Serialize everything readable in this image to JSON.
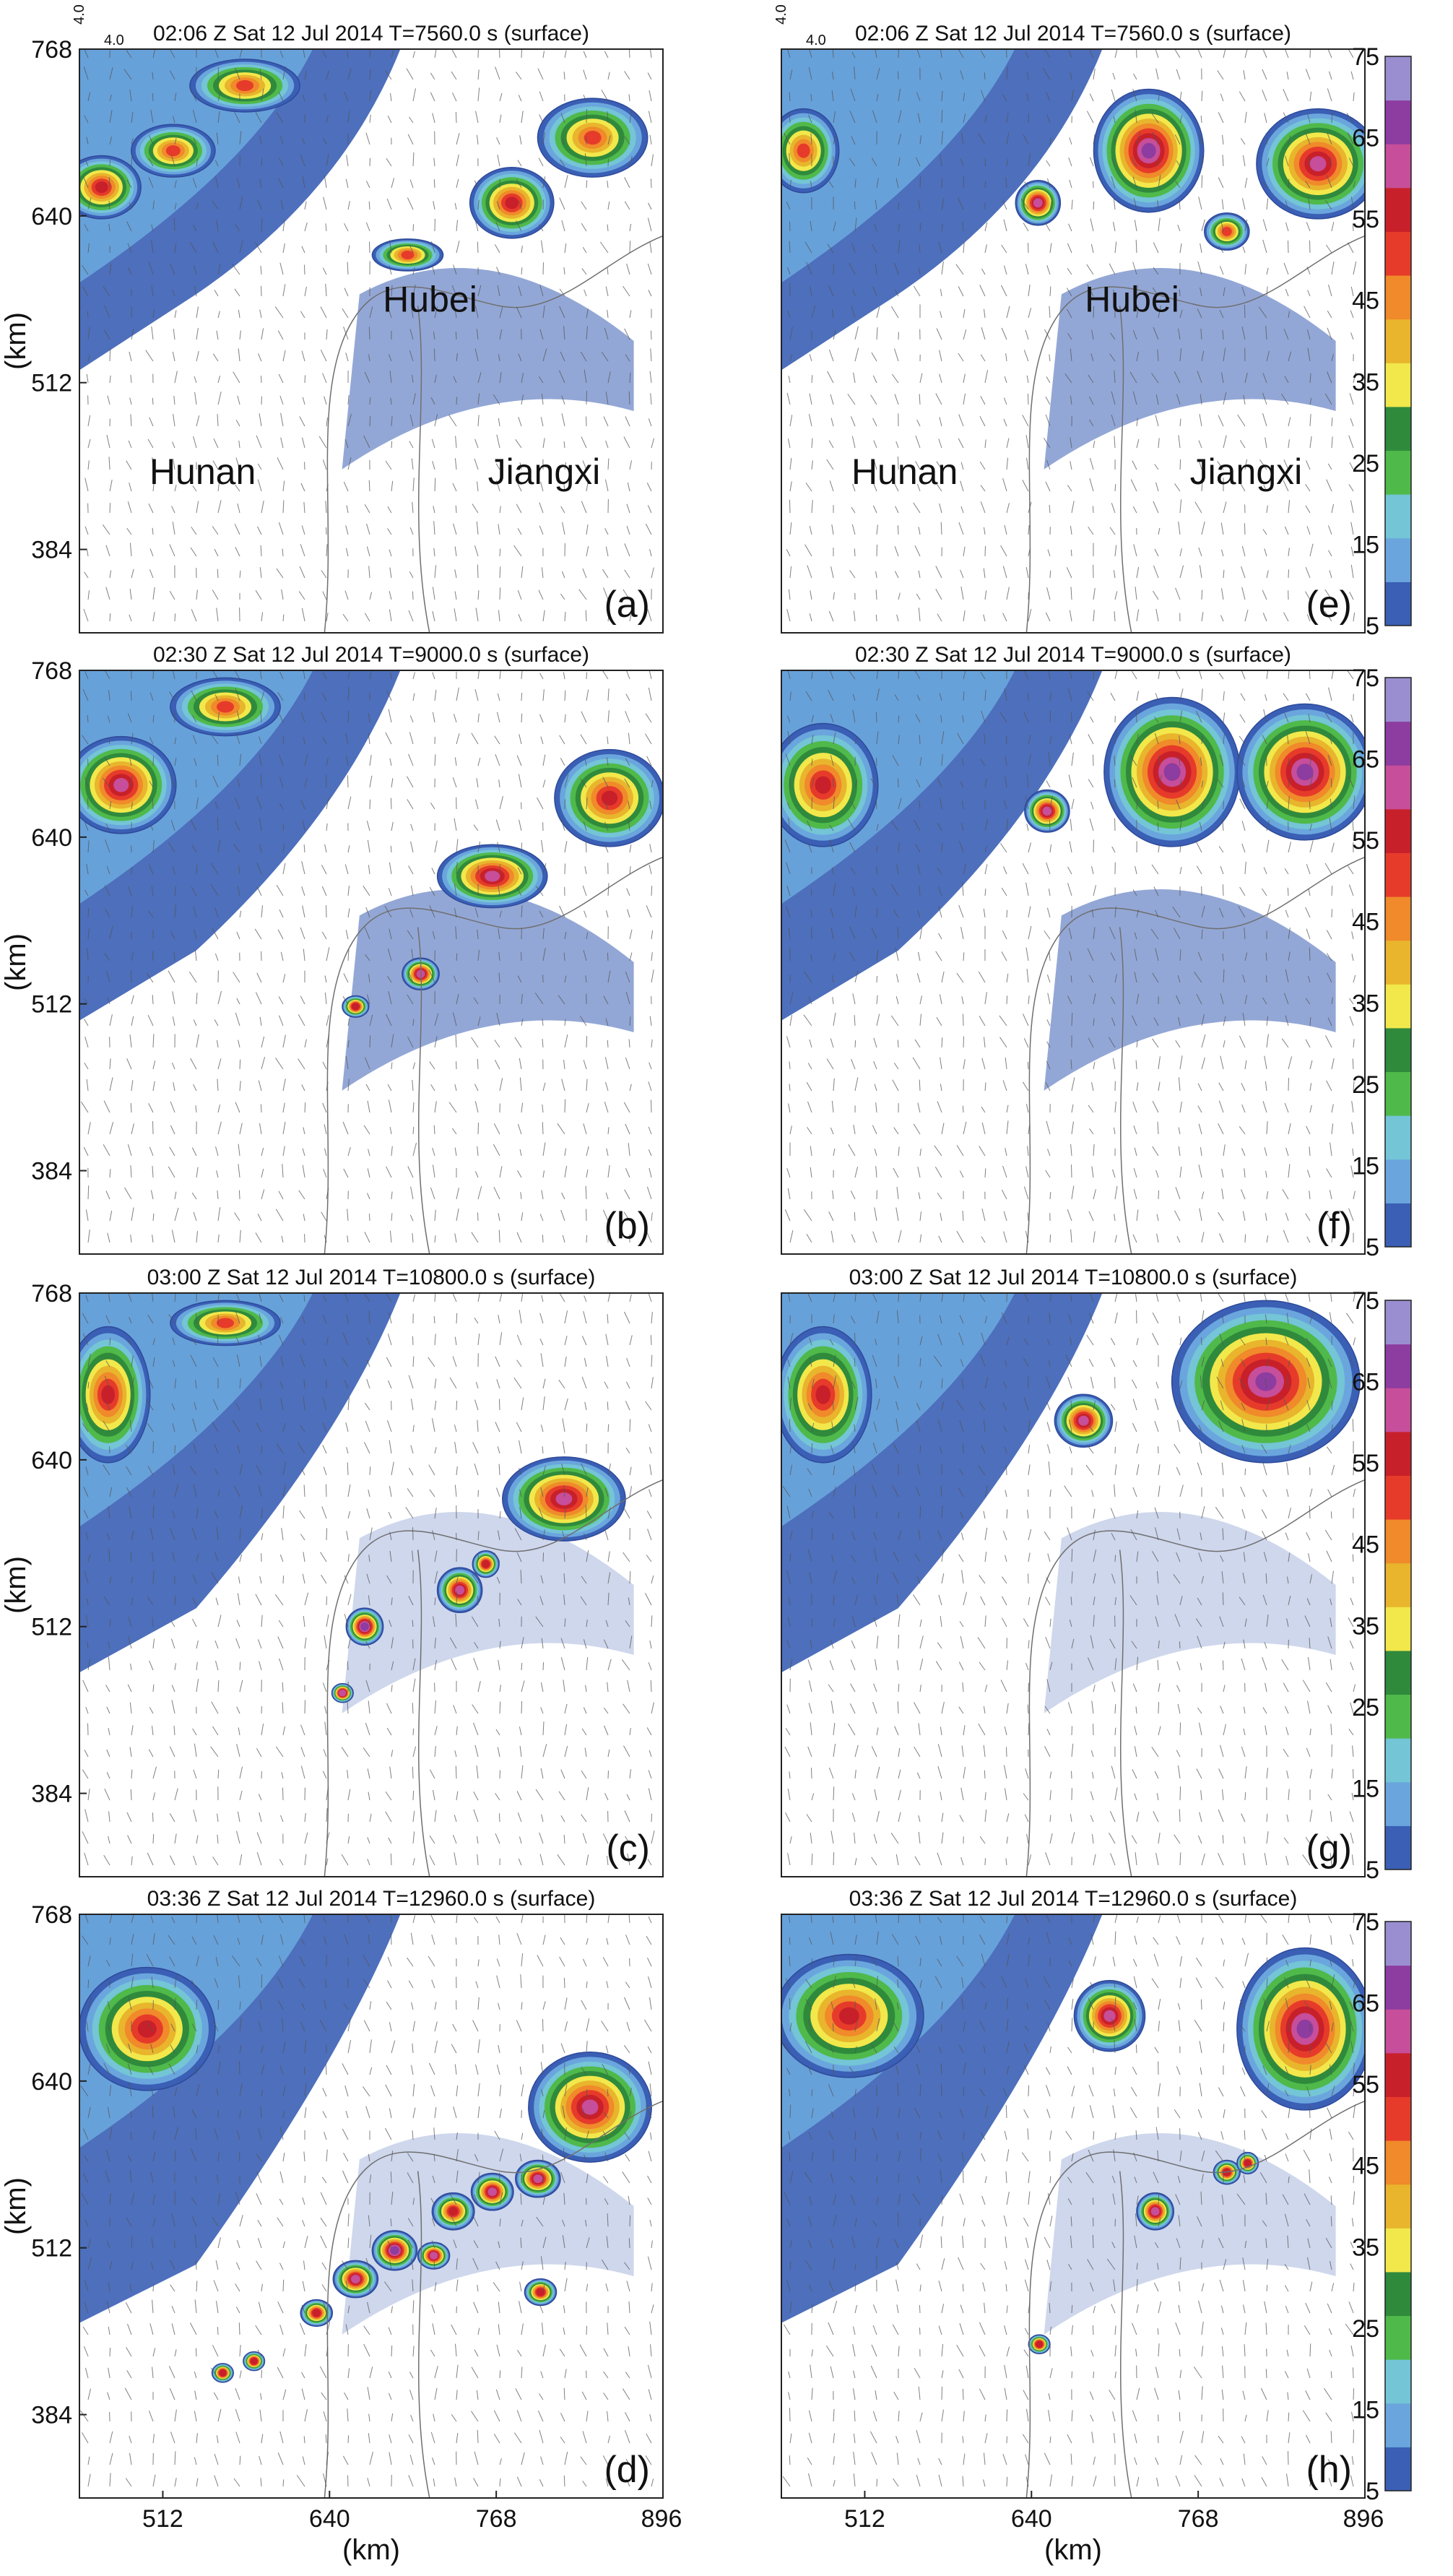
{
  "chart_data": [
    {
      "type": "heatmap",
      "panel": "(a)",
      "title": "02:06 Z Sat 12 Jul 2014 T=7560.0 s (surface)",
      "xlabel": "",
      "ylabel": "(km)",
      "xlim": [
        448,
        896
      ],
      "ylim": [
        320,
        768
      ],
      "yticks": [
        "768",
        "640",
        "512",
        "384"
      ],
      "place_labels": [
        "Hubei",
        "Hunan",
        "Jiangxi"
      ],
      "vector_key": "4.0",
      "field": "radar reflectivity (dBZ)",
      "cells": [
        {
          "x": 465,
          "y": 662,
          "rx": 28,
          "ry": 22,
          "max_dbz": 50
        },
        {
          "x": 520,
          "y": 690,
          "rx": 30,
          "ry": 18,
          "max_dbz": 45
        },
        {
          "x": 575,
          "y": 740,
          "rx": 40,
          "ry": 18,
          "max_dbz": 45
        },
        {
          "x": 780,
          "y": 650,
          "rx": 30,
          "ry": 25,
          "max_dbz": 50
        },
        {
          "x": 842,
          "y": 700,
          "rx": 40,
          "ry": 28,
          "max_dbz": 45
        },
        {
          "x": 700,
          "y": 610,
          "rx": 25,
          "ry": 10,
          "max_dbz": 45
        }
      ]
    },
    {
      "type": "heatmap",
      "panel": "(b)",
      "title": "02:30 Z Sat 12 Jul 2014 T=9000.0 s (surface)",
      "xlabel": "",
      "ylabel": "(km)",
      "xlim": [
        448,
        896
      ],
      "ylim": [
        320,
        768
      ],
      "yticks": [
        "768",
        "640",
        "512",
        "384"
      ],
      "field": "radar reflectivity (dBZ)",
      "cells": [
        {
          "x": 480,
          "y": 680,
          "rx": 40,
          "ry": 35,
          "max_dbz": 55
        },
        {
          "x": 560,
          "y": 740,
          "rx": 40,
          "ry": 20,
          "max_dbz": 45
        },
        {
          "x": 765,
          "y": 610,
          "rx": 40,
          "ry": 22,
          "max_dbz": 55
        },
        {
          "x": 855,
          "y": 670,
          "rx": 40,
          "ry": 35,
          "max_dbz": 50
        },
        {
          "x": 710,
          "y": 535,
          "rx": 12,
          "ry": 10,
          "max_dbz": 55
        },
        {
          "x": 660,
          "y": 510,
          "rx": 8,
          "ry": 6,
          "max_dbz": 50
        }
      ]
    },
    {
      "type": "heatmap",
      "panel": "(c)",
      "title": "03:00 Z Sat 12 Jul 2014 T=10800.0 s (surface)",
      "xlabel": "",
      "ylabel": "(km)",
      "xlim": [
        448,
        896
      ],
      "ylim": [
        320,
        768
      ],
      "yticks": [
        "768",
        "640",
        "512",
        "384"
      ],
      "field": "radar reflectivity (dBZ)",
      "cells": [
        {
          "x": 470,
          "y": 690,
          "rx": 30,
          "ry": 50,
          "max_dbz": 50
        },
        {
          "x": 560,
          "y": 745,
          "rx": 40,
          "ry": 15,
          "max_dbz": 45
        },
        {
          "x": 820,
          "y": 610,
          "rx": 45,
          "ry": 30,
          "max_dbz": 55
        },
        {
          "x": 740,
          "y": 540,
          "rx": 15,
          "ry": 15,
          "max_dbz": 55
        },
        {
          "x": 667,
          "y": 512,
          "rx": 12,
          "ry": 12,
          "max_dbz": 60
        },
        {
          "x": 760,
          "y": 560,
          "rx": 8,
          "ry": 8,
          "max_dbz": 50
        },
        {
          "x": 650,
          "y": 461,
          "rx": 6,
          "ry": 5,
          "max_dbz": 55
        }
      ]
    },
    {
      "type": "heatmap",
      "panel": "(d)",
      "title": "03:36 Z Sat 12 Jul 2014 T=12960.0 s (surface)",
      "xlabel": "(km)",
      "ylabel": "(km)",
      "xlim": [
        448,
        896
      ],
      "ylim": [
        320,
        768
      ],
      "xticks": [
        "512",
        "640",
        "768",
        "896"
      ],
      "yticks": [
        "768",
        "640",
        "512",
        "384"
      ],
      "field": "radar reflectivity (dBZ)",
      "cells": [
        {
          "x": 500,
          "y": 680,
          "rx": 50,
          "ry": 45,
          "max_dbz": 50
        },
        {
          "x": 840,
          "y": 620,
          "rx": 45,
          "ry": 40,
          "max_dbz": 55
        },
        {
          "x": 800,
          "y": 565,
          "rx": 15,
          "ry": 12,
          "max_dbz": 55
        },
        {
          "x": 765,
          "y": 555,
          "rx": 14,
          "ry": 12,
          "max_dbz": 55
        },
        {
          "x": 735,
          "y": 540,
          "rx": 14,
          "ry": 12,
          "max_dbz": 50
        },
        {
          "x": 690,
          "y": 510,
          "rx": 15,
          "ry": 13,
          "max_dbz": 60
        },
        {
          "x": 660,
          "y": 488,
          "rx": 15,
          "ry": 12,
          "max_dbz": 55
        },
        {
          "x": 630,
          "y": 462,
          "rx": 10,
          "ry": 8,
          "max_dbz": 50
        },
        {
          "x": 720,
          "y": 506,
          "rx": 10,
          "ry": 8,
          "max_dbz": 55
        },
        {
          "x": 802,
          "y": 478,
          "rx": 10,
          "ry": 8,
          "max_dbz": 50
        },
        {
          "x": 558,
          "y": 416,
          "rx": 6,
          "ry": 5,
          "max_dbz": 50
        },
        {
          "x": 582,
          "y": 425,
          "rx": 6,
          "ry": 5,
          "max_dbz": 50
        }
      ]
    },
    {
      "type": "heatmap",
      "panel": "(e)",
      "title": "02:06 Z Sat 12 Jul 2014 T=7560.0 s (surface)",
      "xlabel": "",
      "ylabel": "",
      "xlim": [
        448,
        896
      ],
      "ylim": [
        320,
        768
      ],
      "place_labels": [
        "Hubei",
        "Hunan",
        "Jiangxi"
      ],
      "vector_key": "4.0",
      "field": "radar reflectivity (dBZ)",
      "cells": [
        {
          "x": 465,
          "y": 690,
          "rx": 25,
          "ry": 30,
          "max_dbz": 45
        },
        {
          "x": 730,
          "y": 690,
          "rx": 40,
          "ry": 45,
          "max_dbz": 60
        },
        {
          "x": 645,
          "y": 650,
          "rx": 15,
          "ry": 15,
          "max_dbz": 55
        },
        {
          "x": 860,
          "y": 680,
          "rx": 45,
          "ry": 40,
          "max_dbz": 55
        },
        {
          "x": 790,
          "y": 628,
          "rx": 15,
          "ry": 12,
          "max_dbz": 45
        }
      ]
    },
    {
      "type": "heatmap",
      "panel": "(f)",
      "title": "02:30 Z Sat 12 Jul 2014 T=9000.0 s (surface)",
      "xlabel": "",
      "ylabel": "",
      "xlim": [
        448,
        896
      ],
      "ylim": [
        320,
        768
      ],
      "field": "radar reflectivity (dBZ)",
      "cells": [
        {
          "x": 480,
          "y": 680,
          "rx": 40,
          "ry": 45,
          "max_dbz": 50
        },
        {
          "x": 748,
          "y": 690,
          "rx": 50,
          "ry": 55,
          "max_dbz": 60
        },
        {
          "x": 850,
          "y": 690,
          "rx": 50,
          "ry": 50,
          "max_dbz": 60
        },
        {
          "x": 652,
          "y": 660,
          "rx": 15,
          "ry": 14,
          "max_dbz": 55
        }
      ]
    },
    {
      "type": "heatmap",
      "panel": "(g)",
      "title": "03:00 Z Sat 12 Jul 2014 T=10800.0 s (surface)",
      "xlabel": "",
      "ylabel": "",
      "xlim": [
        448,
        896
      ],
      "ylim": [
        320,
        768
      ],
      "field": "radar reflectivity (dBZ)",
      "cells": [
        {
          "x": 480,
          "y": 690,
          "rx": 35,
          "ry": 50,
          "max_dbz": 50
        },
        {
          "x": 820,
          "y": 700,
          "rx": 70,
          "ry": 60,
          "max_dbz": 60
        },
        {
          "x": 680,
          "y": 670,
          "rx": 20,
          "ry": 18,
          "max_dbz": 55
        }
      ]
    },
    {
      "type": "heatmap",
      "panel": "(h)",
      "title": "03:36 Z Sat 12 Jul 2014 T=12960.0 s (surface)",
      "xlabel": "(km)",
      "ylabel": "",
      "xlim": [
        448,
        896
      ],
      "ylim": [
        320,
        768
      ],
      "xticks": [
        "512",
        "640",
        "768",
        "896"
      ],
      "field": "radar reflectivity (dBZ)",
      "cells": [
        {
          "x": 500,
          "y": 690,
          "rx": 55,
          "ry": 45,
          "max_dbz": 50
        },
        {
          "x": 850,
          "y": 680,
          "rx": 50,
          "ry": 60,
          "max_dbz": 60
        },
        {
          "x": 700,
          "y": 690,
          "rx": 25,
          "ry": 25,
          "max_dbz": 55
        },
        {
          "x": 735,
          "y": 540,
          "rx": 12,
          "ry": 12,
          "max_dbz": 55
        },
        {
          "x": 790,
          "y": 570,
          "rx": 8,
          "ry": 7,
          "max_dbz": 50
        },
        {
          "x": 806,
          "y": 577,
          "rx": 6,
          "ry": 6,
          "max_dbz": 50
        },
        {
          "x": 646,
          "y": 438,
          "rx": 6,
          "ry": 5,
          "max_dbz": 50
        }
      ]
    }
  ],
  "colorbar": {
    "ticks": [
      "75",
      "65",
      "55",
      "45",
      "35",
      "25",
      "15",
      "5"
    ],
    "colors": [
      "#3a5fb5",
      "#6aa6dd",
      "#74c5d6",
      "#4fb94a",
      "#2f8a3c",
      "#f2e84b",
      "#e8b52d",
      "#f08a2a",
      "#e63b2a",
      "#c8202a",
      "#c64e9a",
      "#8d3ca0",
      "#9a8ed0"
    ]
  }
}
